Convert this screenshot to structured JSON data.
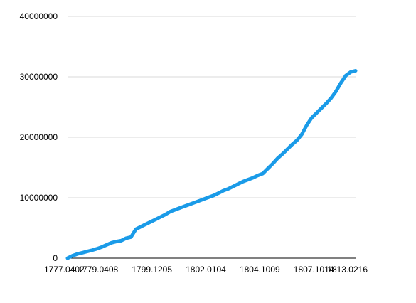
{
  "chart_data": {
    "type": "line",
    "title": "",
    "xlabel": "",
    "ylabel": "",
    "ylim": [
      0,
      40000000
    ],
    "yticks": [
      0,
      10000000,
      20000000,
      30000000,
      40000000
    ],
    "ytick_labels": [
      "0",
      "10000000",
      "20000000",
      "30000000",
      "40000000"
    ],
    "xtick_labels": [
      "1777.0402",
      "1779.0408",
      "1799.1205",
      "1802.0104",
      "1804.1009",
      "1807.1014",
      "1813.0216"
    ],
    "grid": true,
    "legend": "none",
    "line_color": "#1a9be8",
    "series": [
      {
        "values": [
          0,
          400000,
          700000,
          900000,
          1100000,
          1300000,
          1550000,
          1850000,
          2200000,
          2550000,
          2750000,
          2900000,
          3300000,
          3500000,
          4800000,
          5200000,
          5600000,
          6000000,
          6400000,
          6800000,
          7200000,
          7700000,
          8000000,
          8300000,
          8600000,
          8900000,
          9200000,
          9500000,
          9800000,
          10100000,
          10400000,
          10800000,
          11200000,
          11500000,
          11900000,
          12300000,
          12700000,
          13000000,
          13300000,
          13700000,
          14000000,
          14800000,
          15600000,
          16500000,
          17200000,
          18000000,
          18800000,
          19500000,
          20500000,
          22000000,
          23200000,
          24000000,
          24800000,
          25600000,
          26500000,
          27600000,
          29000000,
          30200000,
          30800000,
          31000000
        ]
      }
    ]
  }
}
